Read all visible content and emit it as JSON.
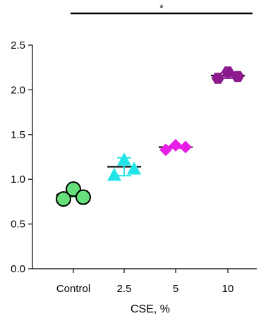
{
  "chart_data": {
    "type": "scatter",
    "xlabel": "CSE, %",
    "ylabel": "",
    "categories": [
      "Control",
      "2.5",
      "5",
      "10"
    ],
    "ylim": [
      0,
      2.5
    ],
    "yticks": [
      "0.0",
      "0.5",
      "1.0",
      "1.5",
      "2.0",
      "2.5"
    ],
    "grid": false,
    "significance": {
      "label": "*",
      "from": "Control",
      "to": "10"
    },
    "series": [
      {
        "category": "Control",
        "marker": "circle",
        "color": "#66e07a",
        "points": [
          0.78,
          0.89,
          0.8
        ],
        "mean": 0.83,
        "error": 0.03
      },
      {
        "category": "2.5",
        "marker": "triangle",
        "color": "#22e5ea",
        "points": [
          1.05,
          1.22,
          1.12
        ],
        "mean": 1.14,
        "error": 0.1
      },
      {
        "category": "5",
        "marker": "diamond",
        "color": "#e81ee8",
        "points": [
          1.33,
          1.38,
          1.36
        ],
        "mean": 1.36,
        "error": 0.01
      },
      {
        "category": "10",
        "marker": "hexagon",
        "color": "#8a1a8e",
        "points": [
          2.13,
          2.2,
          2.15
        ],
        "mean": 2.16,
        "error": 0.03
      }
    ]
  }
}
